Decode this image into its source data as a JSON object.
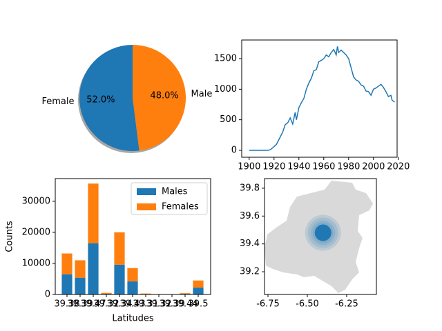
{
  "chart_data": [
    {
      "type": "pie",
      "categories": [
        "Female",
        "Male"
      ],
      "values": [
        52,
        48
      ],
      "value_labels": [
        "52.0%",
        "48.0%"
      ],
      "colors": [
        "#1f77b4",
        "#ff7f0e"
      ],
      "shadow": true
    },
    {
      "type": "line",
      "color": "#1f77b4",
      "x": [
        1900,
        1905,
        1910,
        1915,
        1917,
        1920,
        1922,
        1925,
        1927,
        1929,
        1931,
        1933,
        1935,
        1937,
        1938,
        1940,
        1942,
        1944,
        1946,
        1948,
        1950,
        1952,
        1954,
        1956,
        1958,
        1960,
        1962,
        1964,
        1966,
        1968,
        1970,
        1971,
        1972,
        1974,
        1976,
        1978,
        1980,
        1982,
        1984,
        1986,
        1988,
        1990,
        1992,
        1994,
        1996,
        1998,
        2000,
        2002,
        2004,
        2006,
        2008,
        2010,
        2012,
        2014,
        2015,
        2017
      ],
      "values": [
        0,
        0,
        0,
        0,
        10,
        60,
        100,
        220,
        300,
        420,
        450,
        530,
        430,
        620,
        500,
        700,
        780,
        850,
        1000,
        1100,
        1180,
        1300,
        1320,
        1450,
        1470,
        1500,
        1560,
        1530,
        1600,
        1650,
        1560,
        1700,
        1600,
        1640,
        1600,
        1560,
        1500,
        1350,
        1200,
        1150,
        1130,
        1070,
        1050,
        970,
        960,
        900,
        1000,
        1020,
        1050,
        1080,
        1030,
        960,
        880,
        900,
        820,
        790
      ],
      "xlim": [
        1894,
        2019
      ],
      "xticks": [
        1900,
        1920,
        1940,
        1960,
        1980,
        2000,
        2020
      ],
      "ylim": [
        -113,
        1805
      ],
      "yticks": [
        0,
        500,
        1000,
        1500
      ]
    },
    {
      "type": "bar",
      "stacked": true,
      "xlabel": "Latitudes",
      "ylabel": "Counts",
      "categories": [
        "39.38",
        "39.39",
        "39.47",
        "39.32",
        "39.34",
        "39.43",
        "39.31",
        "39.32",
        "39.39",
        "39.44",
        "39.5"
      ],
      "series": [
        {
          "name": "Males",
          "color": "#1f77b4",
          "values": [
            6500,
            5400,
            16500,
            200,
            9600,
            4200,
            150,
            50,
            20,
            200,
            2200
          ]
        },
        {
          "name": "Females",
          "color": "#ff7f0e",
          "values": [
            6700,
            5600,
            19200,
            300,
            10400,
            4300,
            150,
            50,
            30,
            200,
            2300
          ]
        }
      ],
      "ylim": [
        0,
        37300
      ],
      "yticks": [
        0,
        10000,
        20000,
        30000
      ],
      "legend": "upper right"
    },
    {
      "type": "scatter",
      "color": "#1f77b4",
      "x": [
        -6.4
      ],
      "values": [
        39.48
      ],
      "xlim": [
        -6.772,
        -6.061
      ],
      "xticks": [
        -6.75,
        {
          "value": -6.5,
          "label": "-6.50"
        },
        -6.25
      ],
      "ylim": [
        39.037,
        39.869
      ],
      "yticks": [
        39.2,
        39.4,
        39.6,
        39.8
      ]
    }
  ]
}
